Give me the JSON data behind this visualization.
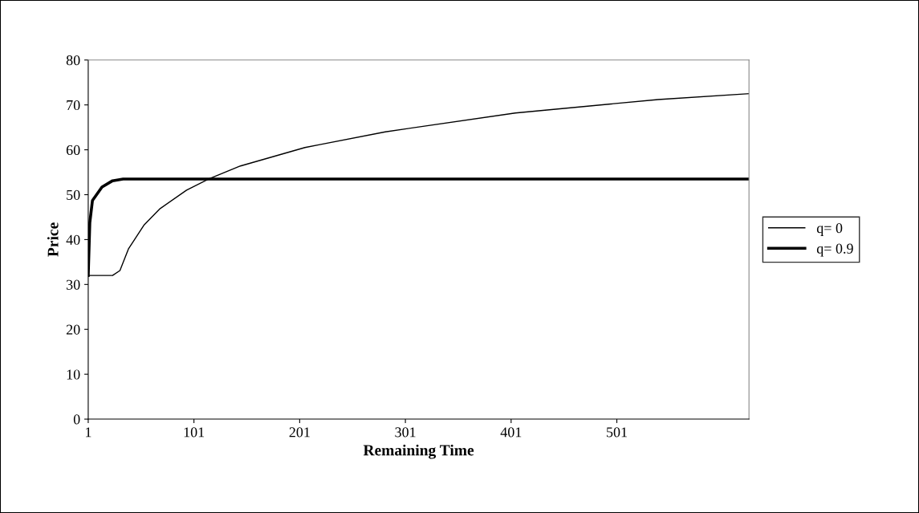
{
  "chart_data": {
    "type": "line",
    "xlabel": "Remaining Time",
    "ylabel": "Price",
    "xlim": [
      1,
      626
    ],
    "xticks": [
      1,
      101,
      201,
      301,
      401,
      501
    ],
    "ylim": [
      0,
      80
    ],
    "yticks": [
      0,
      10,
      20,
      30,
      40,
      50,
      60,
      70,
      80
    ],
    "grid": false,
    "legend": "right",
    "marker": "none",
    "line_style": "solid",
    "series": [
      {
        "name": "q= 0",
        "color": "#000000",
        "x": [
          1,
          24,
          31,
          39,
          54,
          69,
          94,
          115,
          145,
          206,
          221,
          282,
          405,
          540,
          626
        ],
        "values": [
          32,
          32,
          33.1,
          37.9,
          43.3,
          46.9,
          51,
          53.5,
          56.4,
          60.5,
          61.2,
          64,
          68.2,
          71.2,
          72.5
        ]
      },
      {
        "name": "q= 0.9",
        "color": "#000000",
        "x": [
          1,
          2.5,
          5,
          14,
          24,
          34,
          626
        ],
        "values": [
          32,
          43.8,
          48.7,
          51.7,
          53.1,
          53.5,
          53.5
        ]
      }
    ]
  }
}
